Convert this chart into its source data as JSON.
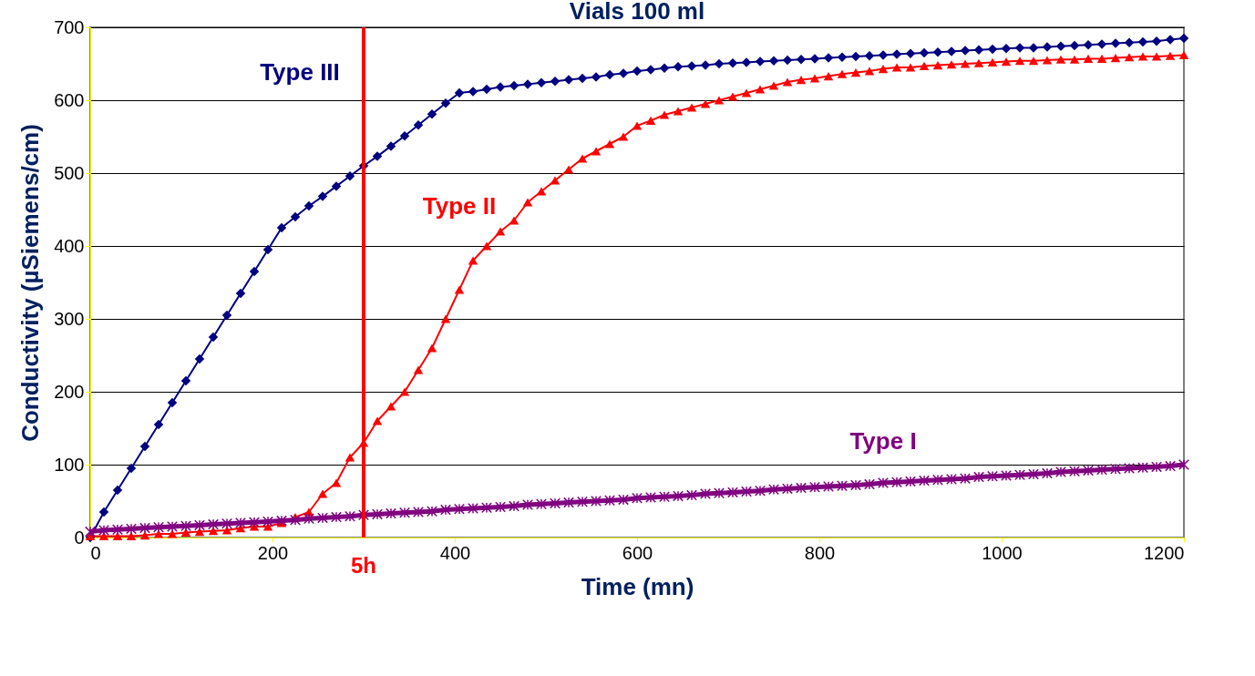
{
  "chart_data": {
    "type": "line",
    "title": "Vials 100 ml",
    "xlabel": "Time (mn)",
    "ylabel": "Conductivity (µSiemens/cm)",
    "xlim": [
      0,
      1200
    ],
    "xticks": [
      0,
      200,
      400,
      600,
      800,
      1000,
      1200
    ],
    "ylim": [
      0,
      700
    ],
    "yticks": [
      0,
      100,
      200,
      300,
      400,
      500,
      600,
      700
    ],
    "grid": "y",
    "line_style": "solid",
    "x": [
      0,
      15,
      30,
      45,
      60,
      75,
      90,
      105,
      120,
      135,
      150,
      165,
      180,
      195,
      210,
      225,
      240,
      255,
      270,
      285,
      300,
      315,
      330,
      345,
      360,
      375,
      390,
      405,
      420,
      435,
      450,
      465,
      480,
      495,
      510,
      525,
      540,
      555,
      570,
      585,
      600,
      615,
      630,
      645,
      660,
      675,
      690,
      705,
      720,
      735,
      750,
      765,
      780,
      795,
      810,
      825,
      840,
      855,
      870,
      885,
      900,
      915,
      930,
      945,
      960,
      975,
      990,
      1005,
      1020,
      1035,
      1050,
      1065,
      1080,
      1095,
      1110,
      1125,
      1140,
      1155,
      1170,
      1185,
      1200
    ],
    "series": [
      {
        "name": "Type III",
        "color": "#000080",
        "marker": "diamond",
        "values": [
          0,
          35,
          65,
          95,
          125,
          155,
          185,
          215,
          245,
          275,
          305,
          335,
          365,
          395,
          425,
          440,
          455,
          468,
          482,
          496,
          510,
          523,
          537,
          551,
          566,
          581,
          596,
          610,
          612,
          615,
          618,
          620,
          622,
          624,
          626,
          628,
          630,
          632,
          635,
          637,
          640,
          642,
          644,
          646,
          647,
          648,
          650,
          651,
          652,
          653,
          654,
          655,
          656,
          657,
          658,
          659,
          660,
          661,
          662,
          663,
          664,
          665,
          666,
          667,
          668,
          669,
          670,
          671,
          672,
          672,
          673,
          674,
          675,
          676,
          677,
          678,
          679,
          680,
          681,
          683,
          685
        ]
      },
      {
        "name": "Type II",
        "color": "#ff0000",
        "marker": "triangle",
        "values": [
          2,
          2,
          2,
          2,
          3,
          5,
          5,
          7,
          8,
          9,
          10,
          13,
          15,
          15,
          20,
          28,
          35,
          60,
          75,
          110,
          130,
          160,
          180,
          200,
          230,
          260,
          300,
          340,
          380,
          400,
          420,
          435,
          460,
          475,
          490,
          505,
          520,
          530,
          540,
          550,
          565,
          572,
          580,
          585,
          590,
          595,
          600,
          605,
          610,
          615,
          620,
          625,
          628,
          630,
          633,
          636,
          638,
          640,
          643,
          645,
          645,
          647,
          648,
          649,
          650,
          651,
          652,
          653,
          654,
          654,
          655,
          656,
          656,
          657,
          657,
          658,
          659,
          660,
          660,
          661,
          662
        ]
      },
      {
        "name": "Type I",
        "color": "#800080",
        "marker": "cross",
        "values": [
          8,
          10,
          11,
          12,
          13,
          14,
          15,
          16,
          17,
          18,
          19,
          20,
          21,
          22,
          23,
          24,
          26,
          27,
          28,
          29,
          31,
          32,
          33,
          34,
          35,
          36,
          38,
          39,
          40,
          41,
          42,
          43,
          45,
          46,
          47,
          48,
          49,
          50,
          51,
          52,
          54,
          55,
          56,
          57,
          58,
          60,
          61,
          62,
          63,
          64,
          66,
          67,
          68,
          69,
          70,
          71,
          72,
          73,
          75,
          76,
          77,
          78,
          79,
          80,
          81,
          83,
          84,
          85,
          86,
          87,
          88,
          90,
          91,
          92,
          93,
          94,
          95,
          96,
          97,
          98,
          100
        ]
      }
    ],
    "ref_lines": [
      {
        "axis": "x",
        "value": 300,
        "label": "5h",
        "color": "#ff0000"
      }
    ]
  }
}
